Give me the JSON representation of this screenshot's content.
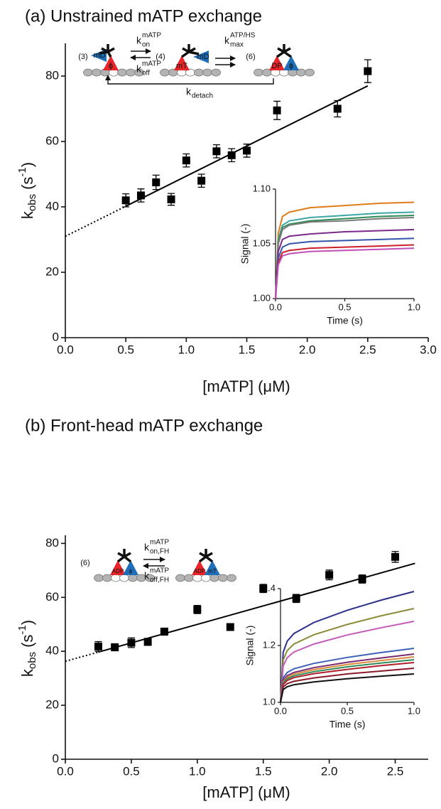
{
  "chart_data": [
    {
      "type": "scatter",
      "title": "(a) Unstrained mATP exchange",
      "xlabel": "[mATP] (μM)",
      "ylabel": {
        "base": "k",
        "sub": "obs",
        "unit": "(s",
        "sup": "-1",
        "close": ")"
      },
      "xlim": [
        0,
        3
      ],
      "xticks": [
        {
          "value": 0,
          "label": "0.0"
        },
        0.5,
        {
          "value": 1,
          "label": "1.0"
        },
        1.5,
        {
          "value": 2,
          "label": "2.0"
        },
        2.5,
        {
          "value": 3,
          "label": "3.0"
        }
      ],
      "ylim": [
        0,
        90
      ],
      "yticks": [
        0,
        20,
        40,
        60,
        80
      ],
      "color": "#000000",
      "x": [
        0.5,
        0.625,
        0.75,
        0.875,
        1.0,
        1.125,
        1.25,
        1.375,
        1.5,
        1.75,
        2.25,
        2.5
      ],
      "values": [
        42,
        43.5,
        47.5,
        42.3,
        54.2,
        48,
        57,
        55.8,
        57.2,
        69.5,
        70,
        81.5
      ],
      "errors": [
        2,
        2,
        2.2,
        1.8,
        2,
        2,
        2,
        2,
        2,
        2.8,
        2.5,
        3.5
      ],
      "fit": {
        "x": [
          0.5,
          2.5
        ],
        "values": [
          40.2,
          77
        ]
      },
      "fit_extrapolated": {
        "x": [
          0,
          0.5
        ],
        "values": [
          31,
          40.2
        ]
      },
      "scheme": {
        "labels": [
          "(3)",
          "mD",
          "ϕ",
          "(4)",
          "mT",
          "mD",
          "(6)",
          "DP",
          "ϕ"
        ],
        "rates": [
          {
            "symbol": "k",
            "sub": "on",
            "sup": "mATP"
          },
          {
            "symbol": "k",
            "sub": "off",
            "sup": "mATP"
          },
          {
            "symbol": "k",
            "sub": "max",
            "sup": "ATP/HS"
          },
          {
            "symbol": "k",
            "sub": "detach"
          }
        ]
      },
      "inset": {
        "type": "line",
        "xlabel": "Time (s)",
        "ylabel": "Signal (-)",
        "xlim": [
          0,
          1
        ],
        "xticks": [
          {
            "value": 0,
            "label": "0.0"
          },
          0.5,
          {
            "value": 1,
            "label": "1.0"
          }
        ],
        "ylim": [
          1,
          1.1
        ],
        "yticks": [
          {
            "value": 1,
            "label": "1.00"
          },
          1.05,
          {
            "value": 1.1,
            "label": "1.10"
          }
        ],
        "x": [
          0,
          0.02,
          0.05,
          0.1,
          0.25,
          0.5,
          0.75,
          1.0
        ],
        "series": [
          {
            "color": "#e07b1a",
            "values": [
              1.0,
              1.06,
              1.075,
              1.079,
              1.083,
              1.085,
              1.087,
              1.088
            ]
          },
          {
            "color": "#3aa6a6",
            "values": [
              1.0,
              1.054,
              1.067,
              1.071,
              1.074,
              1.076,
              1.078,
              1.079
            ]
          },
          {
            "color": "#2e8b57",
            "values": [
              1.0,
              1.052,
              1.065,
              1.068,
              1.071,
              1.073,
              1.075,
              1.076
            ]
          },
          {
            "color": "#7a7a7a",
            "values": [
              1.0,
              1.05,
              1.063,
              1.067,
              1.07,
              1.071,
              1.073,
              1.074
            ]
          },
          {
            "color": "#7b2a8a",
            "values": [
              1.0,
              1.043,
              1.054,
              1.057,
              1.059,
              1.061,
              1.062,
              1.063
            ]
          },
          {
            "color": "#3355aa",
            "values": [
              1.0,
              1.037,
              1.047,
              1.05,
              1.052,
              1.053,
              1.054,
              1.055
            ]
          },
          {
            "color": "#cc1f2a",
            "values": [
              1.0,
              1.033,
              1.042,
              1.044,
              1.046,
              1.047,
              1.048,
              1.049
            ]
          },
          {
            "color": "#c04fb8",
            "values": [
              1.0,
              1.031,
              1.039,
              1.041,
              1.043,
              1.044,
              1.045,
              1.046
            ]
          }
        ]
      }
    },
    {
      "type": "scatter",
      "title": "(b) Front-head mATP exchange",
      "xlabel": "[mATP] (μM)",
      "ylabel": {
        "base": "k",
        "sub": "obs",
        "unit": "(s",
        "sup": "-1",
        "close": ")"
      },
      "xlim": [
        0,
        2.75
      ],
      "xticks": [
        {
          "value": 0,
          "label": "0.0"
        },
        0.5,
        {
          "value": 1,
          "label": "1.0"
        },
        1.5,
        {
          "value": 2,
          "label": "2.0"
        },
        2.5
      ],
      "ylim": [
        0,
        83
      ],
      "yticks": [
        0,
        20,
        40,
        60,
        80
      ],
      "color": "#000000",
      "x": [
        0.25,
        0.375,
        0.5,
        0.625,
        0.75,
        1.0,
        1.25,
        1.5,
        1.75,
        2.0,
        2.25,
        2.5
      ],
      "values": [
        41.8,
        41.5,
        43.2,
        43.5,
        47.3,
        55.5,
        49,
        63.3,
        59.6,
        68.3,
        66.8,
        75
      ],
      "errors": [
        1.8,
        1.3,
        1.8,
        1.3,
        1.3,
        1.5,
        1,
        1.5,
        1.5,
        1.8,
        1.5,
        2
      ],
      "fit": {
        "x": [
          0.25,
          2.65
        ],
        "values": [
          39.7,
          72.6
        ]
      },
      "fit_extrapolated": {
        "x": [
          0,
          0.25
        ],
        "values": [
          36.3,
          39.7
        ]
      },
      "scheme": {
        "labels": [
          "(6)",
          "ADP",
          "ϕ",
          "ADP",
          "mT"
        ],
        "rates": [
          {
            "symbol": "k",
            "sub": "on,FH",
            "sup": "mATP"
          },
          {
            "symbol": "k",
            "sub": "off,FH",
            "sup": "mATP"
          }
        ]
      },
      "inset": {
        "type": "line",
        "xlabel": "Time (s)",
        "ylabel": "Signal (-)",
        "xlim": [
          0,
          1
        ],
        "xticks": [
          {
            "value": 0,
            "label": "0.0"
          },
          0.5,
          {
            "value": 1,
            "label": "1.0"
          }
        ],
        "ylim": [
          1,
          1.4
        ],
        "yticks": [
          {
            "value": 1,
            "label": "1.0"
          },
          1.2,
          1.4
        ],
        "x": [
          0,
          0.02,
          0.05,
          0.1,
          0.25,
          0.5,
          0.75,
          1.0
        ],
        "series": [
          {
            "color": "#2b2f8c",
            "values": [
              1.0,
              1.176,
              1.215,
              1.242,
              1.281,
              1.324,
              1.359,
              1.39
            ]
          },
          {
            "color": "#8c8c3a",
            "values": [
              1.0,
              1.149,
              1.182,
              1.205,
              1.238,
              1.274,
              1.304,
              1.33
            ]
          },
          {
            "color": "#c45bb8",
            "values": [
              1.0,
              1.128,
              1.157,
              1.177,
              1.205,
              1.237,
              1.262,
              1.285
            ]
          },
          {
            "color": "#3f60b8",
            "values": [
              1.0,
              1.086,
              1.105,
              1.118,
              1.137,
              1.158,
              1.175,
              1.19
            ]
          },
          {
            "color": "#7a2a6e",
            "values": [
              1.0,
              1.077,
              1.094,
              1.105,
              1.122,
              1.141,
              1.156,
              1.17
            ]
          },
          {
            "color": "#d98a3a",
            "values": [
              1.0,
              1.072,
              1.088,
              1.099,
              1.115,
              1.133,
              1.147,
              1.16
            ]
          },
          {
            "color": "#2f8a5a",
            "values": [
              1.0,
              1.068,
              1.083,
              1.093,
              1.108,
              1.125,
              1.138,
              1.15
            ]
          },
          {
            "color": "#b21f2a",
            "values": [
              1.0,
              1.063,
              1.077,
              1.087,
              1.101,
              1.116,
              1.129,
              1.14
            ]
          },
          {
            "color": "#8a1a2a",
            "values": [
              1.0,
              1.054,
              1.066,
              1.074,
              1.086,
              1.1,
              1.11,
              1.12
            ]
          },
          {
            "color": "#111111",
            "values": [
              1.0,
              1.045,
              1.055,
              1.062,
              1.072,
              1.083,
              1.092,
              1.1
            ]
          }
        ]
      }
    }
  ]
}
